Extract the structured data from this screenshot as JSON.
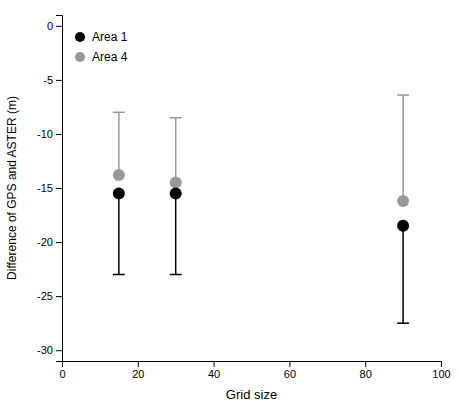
{
  "chart_data": {
    "type": "scatter",
    "xlabel": "Grid size",
    "ylabel": "Difference of GPS and ASTER (m)",
    "x": [
      15,
      30,
      90
    ],
    "series": [
      {
        "name": "Area 1",
        "color": "#000000",
        "values": [
          -15.5,
          -15.5,
          -18.5
        ],
        "upper_err": [
          0.0,
          0.0,
          0.0
        ],
        "lower_err": [
          7.5,
          7.5,
          9.0
        ]
      },
      {
        "name": "Area 4",
        "color": "#999999",
        "values": [
          -13.8,
          -14.5,
          -16.2
        ],
        "upper_err": [
          5.8,
          6.0,
          9.8
        ],
        "lower_err": [
          0.0,
          0.0,
          0.0
        ]
      }
    ],
    "xlim": [
      0,
      100
    ],
    "ylim": [
      -31,
      1
    ],
    "xticks": [
      0,
      20,
      40,
      60,
      80,
      100
    ],
    "yticks": [
      0,
      -5,
      -10,
      -15,
      -20,
      -25,
      -30
    ],
    "legend": "upper left",
    "grid": false
  }
}
